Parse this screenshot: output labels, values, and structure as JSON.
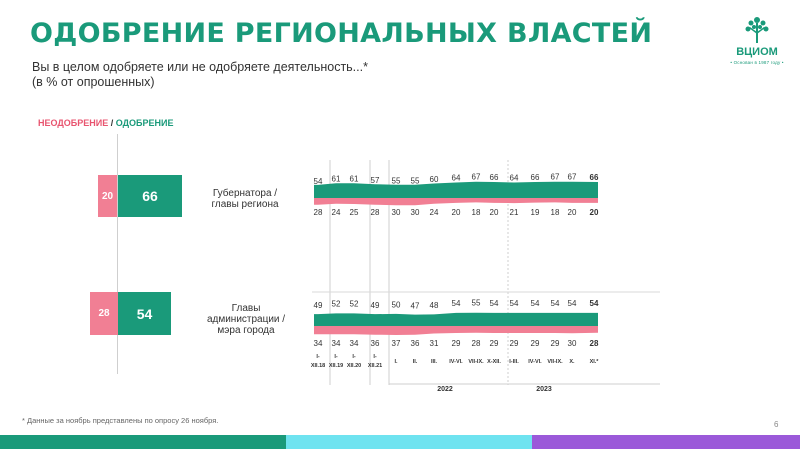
{
  "page": {
    "title": "ОДОБРЕНИЕ РЕГИОНАЛЬНЫХ ВЛАСТЕЙ",
    "subtitle_line1": "Вы в целом одобряете или не одобряете деятельность...*",
    "subtitle_line2": "(в % от опрошенных)",
    "logo_text": "ВЦИОМ",
    "logo_sub": "• Основан в 1987 году •",
    "footnote": "* Данные за ноябрь представлены по опросу 26 ноября.",
    "page_number": "6"
  },
  "legend": {
    "negative": "НЕОДОБРЕНИЕ",
    "separator": " / ",
    "positive": "ОДОБРЕНИЕ"
  },
  "colors": {
    "title": "#1a9a7a",
    "approve": "#1a9a7a",
    "disapprove": "#f17f94",
    "stripe1": "#1a9a7a",
    "stripe2": "#6fe3f0",
    "stripe3": "#9b59d9"
  },
  "summary": {
    "governor": {
      "label_line1": "Губернатора /",
      "label_line2": "главы региона",
      "approve": "66",
      "disapprove": "20"
    },
    "mayor": {
      "label_line1": "Главы",
      "label_line2": "администрации /",
      "label_line3": "мэра города",
      "approve": "54",
      "disapprove": "28"
    }
  },
  "chart_data": {
    "type": "line",
    "x_labels": [
      "I-XII.18",
      "I-XII.19",
      "I-XII.20",
      "I-XII.21",
      "I.",
      "II.",
      "III.",
      "IV-VI.",
      "VII-IX.",
      "X-XII.",
      "I-III.",
      "IV-VI.",
      "VII-IX.",
      "X.",
      "XI.*"
    ],
    "x_label_lines": [
      [
        "I-",
        "XII.18"
      ],
      [
        "I-",
        "XII.19"
      ],
      [
        "I-",
        "XII.20"
      ],
      [
        "I-",
        "XII.21"
      ],
      [
        "I."
      ],
      [
        "II."
      ],
      [
        "III."
      ],
      [
        "IV-VI."
      ],
      [
        "VII-IX."
      ],
      [
        "X-XII."
      ],
      [
        "I-III."
      ],
      [
        "IV-VI."
      ],
      [
        "VII-IX."
      ],
      [
        "X."
      ],
      [
        "XI.*"
      ]
    ],
    "year_labels": [
      {
        "label": "2022",
        "from": 4,
        "to": 9
      },
      {
        "label": "2023",
        "from": 10,
        "to": 14
      }
    ],
    "series": [
      {
        "name": "Губернатора / главы региона — одобрение",
        "values": [
          54,
          61,
          61,
          57,
          55,
          55,
          60,
          64,
          67,
          66,
          64,
          66,
          67,
          67,
          66
        ]
      },
      {
        "name": "Губернатора / главы региона — неодобрение",
        "values": [
          28,
          24,
          25,
          28,
          30,
          30,
          24,
          20,
          18,
          20,
          21,
          19,
          18,
          20,
          20
        ]
      },
      {
        "name": "Главы администрации / мэра города — одобрение",
        "values": [
          49,
          52,
          52,
          49,
          50,
          47,
          48,
          54,
          55,
          54,
          54,
          54,
          54,
          54,
          54
        ]
      },
      {
        "name": "Главы администрации / мэра города — неодобрение",
        "values": [
          34,
          34,
          34,
          36,
          37,
          36,
          31,
          29,
          28,
          29,
          29,
          29,
          29,
          30,
          28
        ]
      }
    ]
  }
}
